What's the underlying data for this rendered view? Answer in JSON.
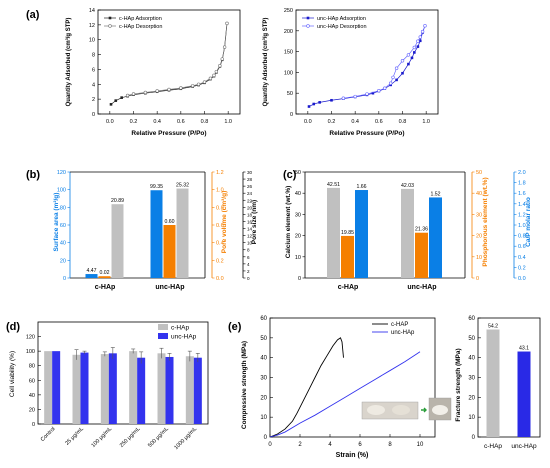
{
  "figure": {
    "panel_labels": [
      "(a)",
      "(b)",
      "(c)",
      "(d)",
      "(e)"
    ]
  },
  "colors": {
    "grey": "#c0c0c0",
    "blue": "#0a7fe6",
    "orange": "#f57f00",
    "navy": "#1a1acc",
    "violet": "#6666ff",
    "black": "#000000"
  },
  "chart_data": [
    {
      "id": "a1",
      "type": "line",
      "xlabel": "Relative Pressure (P/Po)",
      "ylabel": "Quantity Adsorbed (cm³/g STP)",
      "xlim": [
        -0.1,
        1.1
      ],
      "ylim": [
        0,
        14
      ],
      "xticks": [
        "0.0",
        "0.2",
        "0.4",
        "0.6",
        "0.8",
        "1.0"
      ],
      "yticks": [
        "0",
        "2",
        "4",
        "6",
        "8",
        "10",
        "12",
        "14"
      ],
      "legend": {
        "position": "top-left"
      },
      "series": [
        {
          "name": "c-HAp Adsorption",
          "color": "#222222",
          "marker": "filled-square",
          "x": [
            0.01,
            0.05,
            0.1,
            0.15,
            0.2,
            0.3,
            0.4,
            0.5,
            0.6,
            0.7,
            0.75,
            0.8,
            0.85,
            0.88,
            0.9,
            0.93,
            0.95,
            0.97,
            0.99
          ],
          "y": [
            1.3,
            1.8,
            2.2,
            2.4,
            2.6,
            2.8,
            3.0,
            3.2,
            3.4,
            3.7,
            3.9,
            4.2,
            4.7,
            5.1,
            5.6,
            6.4,
            7.3,
            9.0,
            12.2
          ]
        },
        {
          "name": "c-HAp Desorption",
          "color": "#777777",
          "marker": "open-circle",
          "x": [
            0.99,
            0.97,
            0.95,
            0.93,
            0.9,
            0.88,
            0.85,
            0.8,
            0.75,
            0.7,
            0.6,
            0.5,
            0.4,
            0.3,
            0.2,
            0.15
          ],
          "y": [
            12.2,
            9.0,
            7.4,
            6.5,
            5.7,
            5.2,
            4.8,
            4.3,
            4.0,
            3.8,
            3.5,
            3.3,
            3.1,
            2.9,
            2.7,
            2.5
          ]
        }
      ]
    },
    {
      "id": "a2",
      "type": "line",
      "xlabel": "Relative Pressure (P/Po)",
      "ylabel": "Quantity Adsorbed (cm³/g STP)",
      "xlim": [
        -0.1,
        1.1
      ],
      "ylim": [
        0,
        250
      ],
      "xticks": [
        "0.0",
        "0.2",
        "0.4",
        "0.6",
        "0.8",
        "1.0"
      ],
      "yticks": [
        "0",
        "50",
        "100",
        "150",
        "200",
        "250"
      ],
      "legend": {
        "position": "top-left"
      },
      "series": [
        {
          "name": "unc-HAp Adsorption",
          "color": "#1a1acc",
          "marker": "filled-square",
          "x": [
            0.01,
            0.05,
            0.1,
            0.2,
            0.3,
            0.4,
            0.5,
            0.55,
            0.6,
            0.65,
            0.7,
            0.75,
            0.8,
            0.85,
            0.88,
            0.9,
            0.93,
            0.95,
            0.97,
            0.99
          ],
          "y": [
            18,
            24,
            28,
            33,
            37,
            41,
            46,
            50,
            55,
            61,
            70,
            82,
            98,
            120,
            135,
            148,
            162,
            176,
            196,
            212
          ]
        },
        {
          "name": "unc-HAp Desorption",
          "color": "#6666ff",
          "marker": "open-circle",
          "x": [
            0.99,
            0.97,
            0.95,
            0.93,
            0.9,
            0.85,
            0.8,
            0.75,
            0.72,
            0.7,
            0.65,
            0.6,
            0.5,
            0.4,
            0.3
          ],
          "y": [
            212,
            198,
            185,
            175,
            160,
            142,
            128,
            110,
            88,
            74,
            62,
            56,
            48,
            42,
            38
          ]
        }
      ]
    },
    {
      "id": "b",
      "type": "bar",
      "categories": [
        "c-HAp",
        "unc-HAp"
      ],
      "left_axis": {
        "label": "Surface area (m²/g)",
        "ylim": [
          0,
          120
        ],
        "ticks": [
          "0",
          "20",
          "40",
          "60",
          "80",
          "100",
          "120"
        ],
        "color": "#0a7fe6"
      },
      "right_axis_1": {
        "label": "Pore volume (cm³/g)",
        "ylim": [
          0,
          1.2
        ],
        "ticks": [
          "0.0",
          "0.2",
          "0.4",
          "0.6",
          "0.8",
          "1.0",
          "1.2"
        ],
        "color": "#f57f00"
      },
      "right_axis_2": {
        "label": "Pore size (nm)",
        "ylim": [
          0,
          30
        ],
        "ticks": [
          "0",
          "2",
          "4",
          "6",
          "8",
          "10",
          "12",
          "14",
          "16",
          "18",
          "20",
          "22",
          "24",
          "26",
          "28",
          "30"
        ],
        "color": "#000000"
      },
      "series": [
        {
          "name": "Surface area",
          "axis": "left",
          "color": "#0a7fe6",
          "values": [
            4.47,
            99.35
          ]
        },
        {
          "name": "Pore volume",
          "axis": "right_1",
          "color": "#f57f00",
          "values": [
            0.02,
            0.6
          ]
        },
        {
          "name": "Pore size",
          "axis": "right_2",
          "color": "#c0c0c0",
          "values": [
            20.89,
            25.32
          ]
        }
      ],
      "labels": [
        {
          "series": 0,
          "category": 0,
          "text": "4.47"
        },
        {
          "series": 1,
          "category": 0,
          "text": "0.02"
        },
        {
          "series": 2,
          "category": 0,
          "text": "20.89"
        },
        {
          "series": 0,
          "category": 1,
          "text": "99.35"
        },
        {
          "series": 1,
          "category": 1,
          "text": "0.60"
        },
        {
          "series": 2,
          "category": 1,
          "text": "25.32"
        }
      ]
    },
    {
      "id": "c",
      "type": "bar",
      "categories": [
        "c-HAp",
        "unc-HAp"
      ],
      "left_axis": {
        "label": "Calcium element (wt.%)",
        "ylim": [
          0,
          50
        ],
        "ticks": [
          "0",
          "10",
          "20",
          "30",
          "40",
          "50"
        ],
        "color": "#000000"
      },
      "right_axis_1": {
        "label": "Phosphorous element (wt.%)",
        "ylim": [
          0,
          50
        ],
        "ticks": [
          "0",
          "10",
          "20",
          "30",
          "40",
          "50"
        ],
        "color": "#f57f00"
      },
      "right_axis_2": {
        "label": "Ca/P molar ratio",
        "ylim": [
          0,
          2.0
        ],
        "ticks": [
          "0.0",
          "0.2",
          "0.4",
          "0.6",
          "0.8",
          "1.0",
          "1.2",
          "1.4",
          "1.6",
          "1.8",
          "2.0"
        ],
        "color": "#0a7fe6"
      },
      "series": [
        {
          "name": "Calcium element",
          "axis": "left",
          "color": "#c0c0c0",
          "values": [
            42.51,
            42.03
          ]
        },
        {
          "name": "Phosphorous element",
          "axis": "right_1",
          "color": "#f57f00",
          "values": [
            19.85,
            21.36
          ]
        },
        {
          "name": "Ca/P molar ratio",
          "axis": "right_2",
          "color": "#0a7fe6",
          "values": [
            1.66,
            1.52
          ]
        }
      ],
      "labels": [
        {
          "series": 0,
          "category": 0,
          "text": "42.51"
        },
        {
          "series": 1,
          "category": 0,
          "text": "19.85"
        },
        {
          "series": 2,
          "category": 0,
          "text": "1.66"
        },
        {
          "series": 0,
          "category": 1,
          "text": "42.03"
        },
        {
          "series": 1,
          "category": 1,
          "text": "21.36"
        },
        {
          "series": 2,
          "category": 1,
          "text": "1.52"
        }
      ]
    },
    {
      "id": "d",
      "type": "bar",
      "ylabel": "Cell viability (%)",
      "ylim": [
        0,
        140
      ],
      "yticks": [
        "0",
        "20",
        "40",
        "60",
        "80",
        "100",
        "120"
      ],
      "categories": [
        "Control",
        "25 μg/mL",
        "100 μg/mL",
        "250 μg/mL",
        "500 μg/mL",
        "1000 μg/mL"
      ],
      "legend": {
        "position": "top-right"
      },
      "series": [
        {
          "name": "c-HAp",
          "color": "#c0c0c0",
          "values": [
            100,
            95,
            96,
            100,
            97,
            93
          ],
          "errors": [
            0,
            7,
            3,
            3,
            7,
            7
          ]
        },
        {
          "name": "unc-HAp",
          "color": "#3333ee",
          "values": [
            100,
            98,
            97,
            91,
            92,
            91
          ],
          "errors": [
            0,
            2,
            8,
            8,
            5,
            6
          ]
        }
      ]
    },
    {
      "id": "e1",
      "type": "line",
      "xlabel": "Strain (%)",
      "ylabel": "Compressive strength (MPa)",
      "xlim": [
        0,
        11
      ],
      "ylim": [
        0,
        60
      ],
      "xticks": [
        "0",
        "2",
        "4",
        "6",
        "8",
        "10"
      ],
      "yticks": [
        "0",
        "10",
        "20",
        "30",
        "40",
        "50",
        "60"
      ],
      "legend": {
        "position": "top-right"
      },
      "series": [
        {
          "name": "c-HAP",
          "color": "#000000",
          "x": [
            0,
            0.5,
            1.0,
            1.5,
            1.8,
            2.2,
            2.6,
            3.0,
            3.4,
            3.8,
            4.2,
            4.5,
            4.7,
            4.8,
            4.85,
            4.9
          ],
          "y": [
            0,
            1.5,
            4,
            8,
            12,
            18,
            24,
            30,
            36,
            41,
            46,
            49,
            50,
            48,
            44,
            40
          ]
        },
        {
          "name": "unc-HAp",
          "color": "#3333ee",
          "x": [
            0,
            0.5,
            1,
            2,
            3,
            4,
            5,
            6,
            7,
            8,
            9,
            9.8,
            10
          ],
          "y": [
            0,
            1,
            2.5,
            7,
            11,
            15.5,
            20,
            24.5,
            29,
            33.5,
            38,
            42,
            43
          ]
        }
      ]
    },
    {
      "id": "e2",
      "type": "bar",
      "ylabel": "Fracture strength (MPa)",
      "ylim": [
        0,
        60
      ],
      "yticks": [
        "0",
        "10",
        "20",
        "30",
        "40",
        "50",
        "60"
      ],
      "categories": [
        "c-HAp",
        "unc-HAp"
      ],
      "series": [
        {
          "name": "Fracture strength",
          "values": [
            54.2,
            43.1
          ],
          "colors": [
            "#c0c0c0",
            "#2929e6"
          ]
        }
      ],
      "labels": [
        "54.2",
        "43.1"
      ]
    }
  ]
}
